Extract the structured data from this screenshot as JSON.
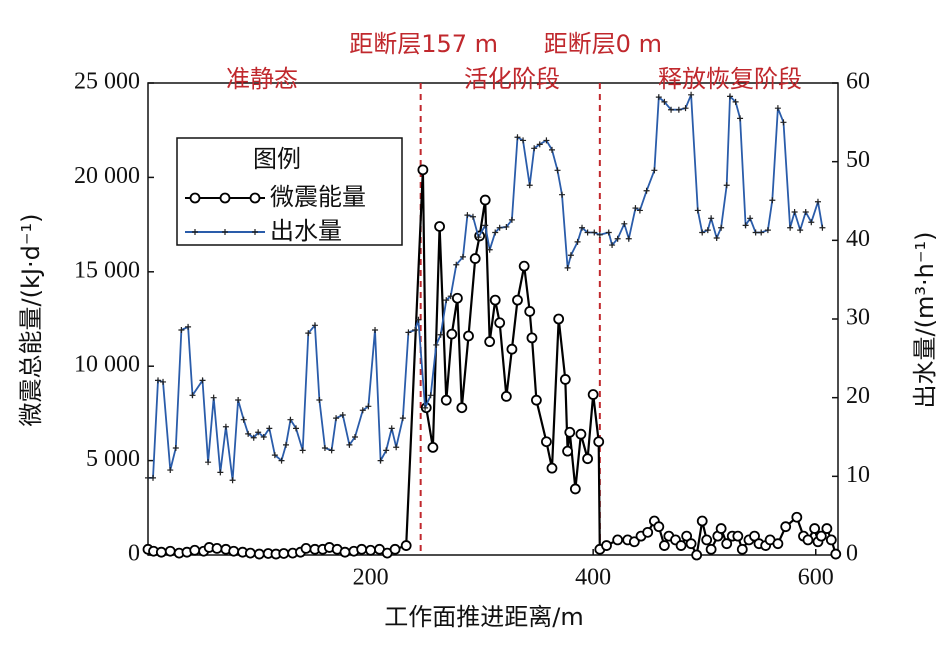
{
  "chart_data": {
    "type": "line",
    "xlabel": "工作面推进距离/m",
    "ylabel": "微震总能量/(kJ·d⁻¹)",
    "y2label": "出水量/(m³·h⁻¹)",
    "xlim": [
      0,
      620
    ],
    "xticks": [
      200,
      400,
      600
    ],
    "ylim": [
      0,
      25000
    ],
    "yticks": [
      0,
      {
        "value": 5000,
        "label": "5 000"
      },
      {
        "value": 10000,
        "label": "10 000"
      },
      {
        "value": 15000,
        "label": "15 000"
      },
      {
        "value": 20000,
        "label": "20 000"
      },
      {
        "value": 25000,
        "label": "25 000"
      }
    ],
    "y2lim": [
      0,
      60
    ],
    "y2ticks": [
      0,
      10,
      20,
      30,
      40,
      50,
      60
    ],
    "legend_title": "图例",
    "annotations": [
      {
        "text": "距断层157 m",
        "x": 245,
        "color": "#c0282d"
      },
      {
        "text": "距断层0 m",
        "x": 406,
        "color": "#c0282d"
      }
    ],
    "phases": [
      "准静态",
      "活化阶段",
      "释放恢复阶段"
    ],
    "series": [
      {
        "name": "微震能量",
        "color": "#000000",
        "marker": "circle",
        "x": [
          0,
          5,
          12,
          20,
          28,
          35,
          42,
          50,
          55,
          62,
          70,
          77,
          85,
          92,
          100,
          108,
          115,
          122,
          130,
          137,
          142,
          150,
          157,
          163,
          170,
          177,
          185,
          192,
          200,
          208,
          215,
          222,
          232,
          247,
          250,
          256,
          262,
          268,
          273,
          278,
          282,
          288,
          294,
          298,
          303,
          307,
          312,
          316,
          322,
          327,
          332,
          338,
          343,
          345,
          349,
          358,
          363,
          369,
          375,
          377,
          379,
          384,
          389,
          395,
          400,
          405,
          406,
          412,
          422,
          431,
          437,
          443,
          449,
          455,
          459,
          464,
          468,
          474,
          479,
          484,
          488,
          493,
          498,
          502,
          506,
          512,
          515,
          520,
          525,
          530,
          534,
          540,
          545,
          549,
          555,
          559,
          566,
          573,
          583,
          589,
          593,
          599,
          602,
          605,
          610,
          614,
          618
        ],
        "values": [
          300,
          200,
          150,
          200,
          100,
          150,
          250,
          200,
          400,
          350,
          300,
          200,
          150,
          100,
          50,
          80,
          50,
          80,
          100,
          150,
          350,
          300,
          300,
          400,
          300,
          150,
          200,
          300,
          250,
          300,
          100,
          300,
          500,
          20400,
          7800,
          5700,
          17400,
          8200,
          11700,
          13600,
          7800,
          11600,
          15700,
          16900,
          18800,
          11300,
          13500,
          12300,
          8400,
          10900,
          13500,
          15300,
          12900,
          11500,
          8200,
          6000,
          4600,
          12500,
          9300,
          5500,
          6500,
          3500,
          6400,
          5100,
          8500,
          6000,
          300,
          500,
          800,
          800,
          700,
          1000,
          1200,
          1800,
          1500,
          500,
          1000,
          800,
          500,
          1000,
          600,
          0,
          1800,
          800,
          300,
          1000,
          1400,
          600,
          1000,
          1000,
          300,
          800,
          1000,
          600,
          500,
          800,
          600,
          1500,
          2000,
          1000,
          800,
          1400,
          700,
          1000,
          1400,
          800,
          50
        ]
      },
      {
        "name": "出水量",
        "color": "#2a5caa",
        "marker": "plus",
        "axis": "y2",
        "x": [
          0,
          4.5,
          9,
          13.5,
          20,
          25,
          30,
          36,
          40,
          49,
          54,
          59,
          65,
          70,
          76,
          81,
          86,
          90,
          95,
          99,
          104,
          109,
          114,
          120,
          124,
          128,
          133,
          139,
          144,
          150,
          154,
          159,
          165,
          169,
          175,
          181,
          186,
          193,
          198,
          204,
          209,
          214,
          219,
          223,
          229,
          234,
          240,
          243,
          249,
          254,
          259,
          263,
          268,
          272,
          277,
          283,
          287,
          292,
          297,
          303,
          307,
          312,
          316,
          322,
          327,
          332,
          337,
          343,
          347,
          352,
          358,
          363,
          368,
          372,
          377,
          380,
          386,
          390,
          395,
          401,
          406,
          414,
          417,
          422,
          428,
          432,
          438,
          442,
          448,
          455,
          459,
          464,
          470,
          477,
          483,
          488,
          494,
          498,
          503,
          506,
          511,
          515,
          520,
          523,
          528,
          532,
          537,
          541,
          546,
          551,
          557,
          561,
          566,
          571,
          577,
          581,
          586,
          591,
          596,
          602,
          606
        ],
        "values": [
          9.8,
          9.8,
          22.2,
          22,
          10.8,
          13.6,
          28.6,
          29,
          20.3,
          22.2,
          11.8,
          20,
          10.5,
          16.3,
          9.5,
          19.7,
          17.2,
          15.4,
          14.9,
          15.6,
          15,
          16.1,
          12.7,
          12,
          14,
          17.2,
          16.1,
          13.3,
          28.2,
          29.2,
          19.7,
          13.6,
          13.3,
          17.4,
          17.8,
          14,
          15,
          18.4,
          18.9,
          28.6,
          12,
          13.3,
          16.1,
          13.7,
          17.4,
          28.3,
          28.6,
          29.9,
          18.7,
          20.3,
          26.7,
          28,
          32.4,
          32.9,
          36.9,
          37.9,
          43.2,
          43,
          40.4,
          41.9,
          38.8,
          41,
          41.6,
          41.7,
          42.6,
          53.1,
          52.7,
          47,
          51.7,
          52.2,
          52.7,
          51.5,
          48.9,
          45.8,
          36.5,
          38.1,
          39.8,
          41.6,
          41,
          41,
          40.7,
          41,
          39.4,
          40.2,
          42.1,
          40.2,
          44.1,
          43.8,
          46.3,
          48.9,
          58.2,
          57.6,
          56.6,
          56.6,
          56.8,
          58.5,
          43.8,
          41,
          41.3,
          42.8,
          40.3,
          41.6,
          47,
          58.3,
          57.6,
          55.5,
          41.9,
          42.8,
          41,
          41,
          41.3,
          45.1,
          56.8,
          55,
          41.6,
          43.6,
          41.3,
          43.6,
          42.3,
          44.9,
          41.6
        ]
      }
    ]
  }
}
